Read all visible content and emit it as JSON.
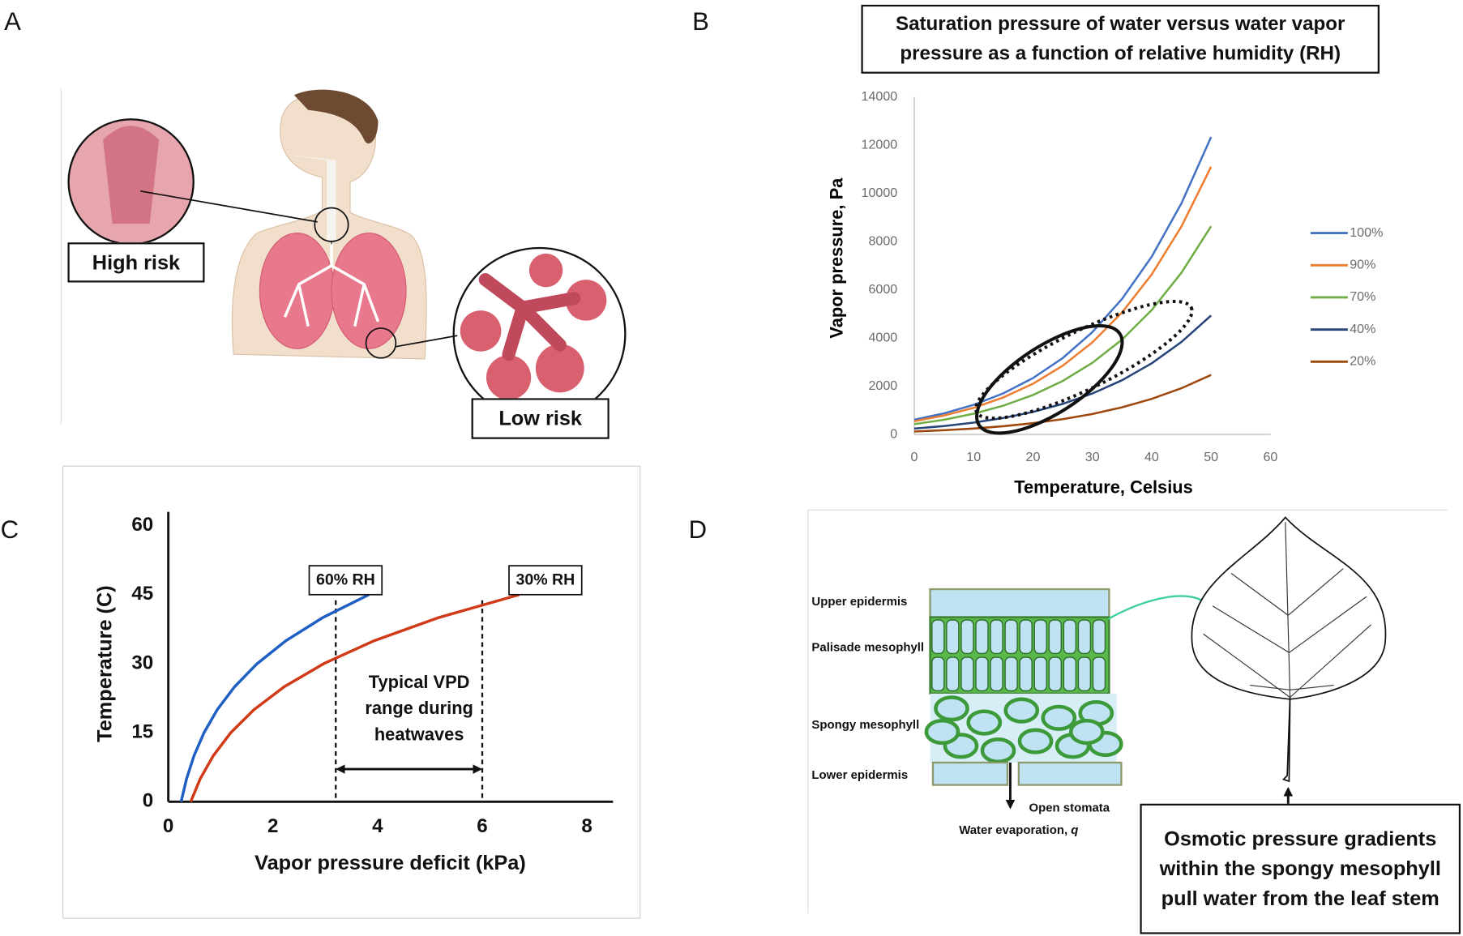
{
  "panel_labels": [
    "A",
    "B",
    "C",
    "D"
  ],
  "panel_a": {
    "high_risk_label": "High risk",
    "low_risk_label": "Low risk"
  },
  "chart_data": [
    {
      "type": "line",
      "title": "Saturation pressure of water versus water vapor pressure as a function of relative humidity (RH)",
      "x_label": "Temperature, Celsius",
      "y_label": "Vapor pressure, Pa",
      "x": [
        0,
        5,
        10,
        15,
        20,
        25,
        30,
        35,
        40,
        45,
        50
      ],
      "series": [
        {
          "name": "100%",
          "color": "#4472c4",
          "values": [
            611,
            872,
            1227,
            1704,
            2337,
            3167,
            4243,
            5623,
            7375,
            9582,
            12335
          ]
        },
        {
          "name": "90%",
          "color": "#ed7d31",
          "values": [
            550,
            785,
            1104,
            1534,
            2103,
            2850,
            3819,
            5061,
            6638,
            8624,
            11102
          ]
        },
        {
          "name": "70%",
          "color": "#70ad47",
          "values": [
            428,
            610,
            859,
            1193,
            1636,
            2217,
            2970,
            3936,
            5163,
            6707,
            8635
          ]
        },
        {
          "name": "40%",
          "color": "#264478",
          "values": [
            244,
            349,
            491,
            682,
            935,
            1267,
            1697,
            2249,
            2950,
            3833,
            4934
          ]
        },
        {
          "name": "20%",
          "color": "#9e480e",
          "values": [
            122,
            174,
            245,
            341,
            467,
            633,
            849,
            1125,
            1475,
            1916,
            2467
          ]
        }
      ],
      "xlim": [
        0,
        60
      ],
      "xticks": [
        0,
        10,
        20,
        30,
        40,
        50,
        60
      ],
      "ylim": [
        0,
        14000
      ],
      "yticks": [
        0,
        2000,
        4000,
        6000,
        8000,
        10000,
        12000,
        14000
      ],
      "grid": false,
      "legend": "right"
    },
    {
      "type": "line",
      "x_label": "Vapor pressure deficit (kPa)",
      "y_label": "Temperature (C)",
      "series": [
        {
          "name": "60% RH",
          "color": "#1f5fc4",
          "x": [
            0.244,
            0.349,
            0.491,
            0.682,
            0.935,
            1.267,
            1.697,
            2.249,
            2.95,
            3.833
          ],
          "values": [
            0,
            5,
            10,
            15,
            20,
            25,
            30,
            35,
            40,
            45
          ]
        },
        {
          "name": "30% RH",
          "color": "#d03a17",
          "x": [
            0.428,
            0.61,
            0.859,
            1.193,
            1.636,
            2.217,
            2.97,
            3.936,
            5.163,
            6.707
          ],
          "values": [
            0,
            5,
            10,
            15,
            20,
            25,
            30,
            35,
            40,
            45
          ]
        }
      ],
      "annotation": {
        "text": "Typical VPD range during heatwaves",
        "range": [
          3.2,
          6
        ]
      },
      "xlim": [
        0,
        8.5
      ],
      "xticks": [
        0,
        2,
        4,
        6,
        8
      ],
      "ylim": [
        0,
        63
      ],
      "yticks": [
        0,
        15,
        30,
        45,
        60
      ],
      "grid": false,
      "legend": "line-end"
    }
  ],
  "panel_d": {
    "layers": [
      "Upper epidermis",
      "Palisade mesophyll",
      "Spongy mesophyll",
      "Lower epidermis"
    ],
    "stomata_label": "Open stomata",
    "evaporation_label": "Water evaporation,",
    "evaporation_symbol": "q",
    "caption": "Osmotic pressure gradients within the spongy mesophyll pull water from the leaf stem"
  }
}
